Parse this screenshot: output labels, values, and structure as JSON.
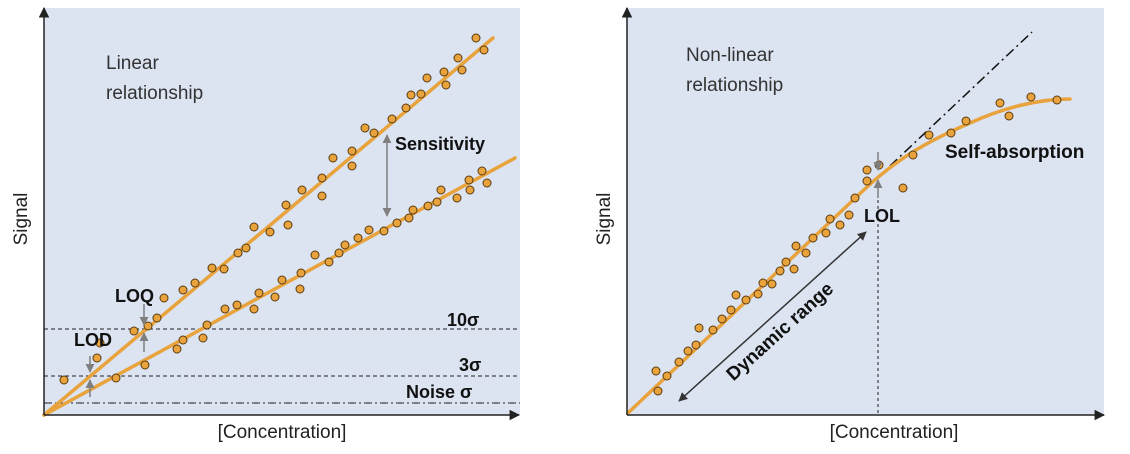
{
  "colors": {
    "plot_bg": "#DCE3F1",
    "fit_line": "#E8A33C",
    "points": "#E8A33C",
    "arrow_gray": "#7f7f7f"
  },
  "left_panel": {
    "label_line1": "Linear",
    "label_line2": "relationship",
    "y_axis_label": "Signal",
    "x_axis_label": "[Concentration]",
    "annotations": {
      "sensitivity": "Sensitivity",
      "loq": "LOQ",
      "lod": "LOD",
      "ten_sigma": "10σ",
      "three_sigma": "3σ",
      "noise": "Noise σ"
    }
  },
  "right_panel": {
    "label_line1": "Non-linear",
    "label_line2": "relationship",
    "y_axis_label": "Signal",
    "x_axis_label": "[Concentration]",
    "annotations": {
      "self_absorption": "Self-absorption",
      "lol": "LOL",
      "dynamic_range": "Dynamic range"
    }
  }
}
